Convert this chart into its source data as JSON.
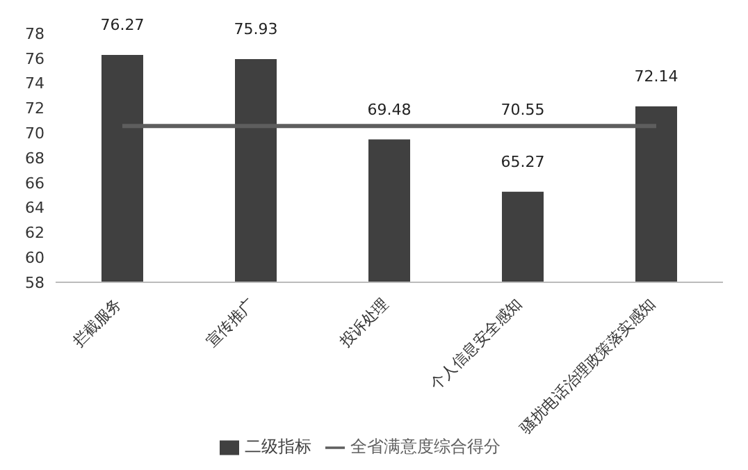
{
  "chart_data": {
    "type": "bar",
    "categories": [
      "拦截服务",
      "宣传推广",
      "投诉处理",
      "个人信息安全感知",
      "骚扰电话治理政策落实感知"
    ],
    "series": [
      {
        "name": "二级指标",
        "color": "#404040",
        "values": [
          76.27,
          75.93,
          69.48,
          65.27,
          72.14
        ],
        "data_labels": true
      },
      {
        "name": "全省满意度综合得分",
        "type": "line",
        "color": "#5e5e5e",
        "values": [
          70.55,
          70.55,
          70.55,
          70.55,
          70.55
        ],
        "value_labels": [
          null,
          null,
          null,
          "70.55",
          null
        ]
      }
    ],
    "ylim": [
      58,
      78
    ],
    "yticks": [
      58,
      60,
      62,
      64,
      66,
      68,
      70,
      72,
      74,
      76,
      78
    ],
    "grid": false,
    "legend": "bottom",
    "marker": "none"
  }
}
